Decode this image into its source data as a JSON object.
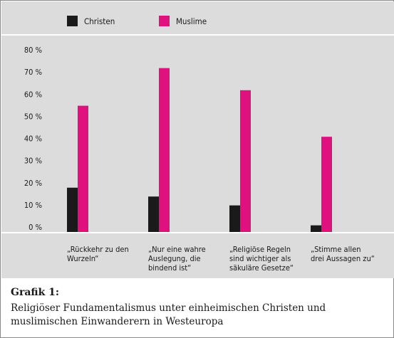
{
  "chart_data": {
    "type": "bar",
    "categories": [
      [
        "„Rückkehr zu den",
        "Wurzeln“"
      ],
      [
        "„Nur eine wahre",
        "Auslegung, die",
        "bindend ist“"
      ],
      [
        "„Religiöse Regeln",
        "sind wichtiger als",
        "säkuläre Gesetze“"
      ],
      [
        "„Stimme allen",
        "drei Aussagen zu“"
      ]
    ],
    "series": [
      {
        "name": "Christen",
        "values": [
          20,
          16,
          12,
          3
        ],
        "color": "#1a1a1a"
      },
      {
        "name": "Muslime",
        "values": [
          57,
          74,
          64,
          43
        ],
        "color": "#e0117f"
      }
    ],
    "yticks": [
      "0 %",
      "10 %",
      "20 %",
      "30 %",
      "40 %",
      "50 %",
      "60 %",
      "70 %",
      "80 %"
    ],
    "ylim": [
      0,
      80
    ],
    "legend": "top-left",
    "grid": false
  },
  "caption": {
    "heading": "Grafik 1:",
    "line1": "Religiöser Fundamentalismus unter einheimischen Christen und",
    "line2": "muslimischen Einwanderern in Westeuropa"
  },
  "colors": {
    "background": "#dcdcdc",
    "divider": "#ffffff",
    "text": "#1a1a1a"
  }
}
